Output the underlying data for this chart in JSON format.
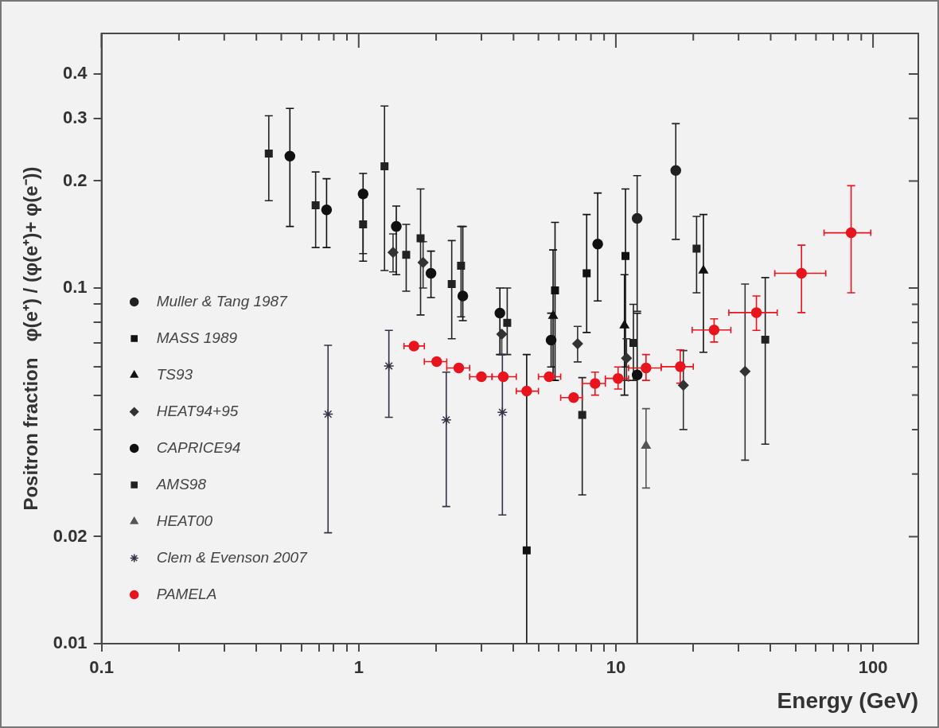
{
  "chart_data": {
    "type": "scatter",
    "xlabel": "Energy (GeV)",
    "ylabel": "Positron fraction   φ(e⁺) / (φ(e⁺)+ φ(e⁻))",
    "log": "xy",
    "legend": "left",
    "xlim": [
      0.1,
      150
    ],
    "ylim": [
      0.01,
      0.52
    ],
    "xticks": [
      0.1,
      {
        "value": 0.2,
        "label": null
      },
      {
        "value": 0.3,
        "label": null
      },
      {
        "value": 0.4,
        "label": null
      },
      {
        "value": 0.5,
        "label": null
      },
      {
        "value": 0.6,
        "label": null
      },
      {
        "value": 0.7,
        "label": null
      },
      {
        "value": 0.8,
        "label": null
      },
      {
        "value": 0.9,
        "label": null
      },
      1,
      {
        "value": 2,
        "label": null
      },
      {
        "value": 3,
        "label": null
      },
      {
        "value": 4,
        "label": null
      },
      {
        "value": 5,
        "label": null
      },
      {
        "value": 6,
        "label": null
      },
      {
        "value": 7,
        "label": null
      },
      {
        "value": 8,
        "label": null
      },
      {
        "value": 9,
        "label": null
      },
      10,
      {
        "value": 20,
        "label": null
      },
      {
        "value": 30,
        "label": null
      },
      {
        "value": 40,
        "label": null
      },
      {
        "value": 50,
        "label": null
      },
      {
        "value": 60,
        "label": null
      },
      {
        "value": 70,
        "label": null
      },
      {
        "value": 80,
        "label": null
      },
      {
        "value": 90,
        "label": null
      },
      100
    ],
    "yticks": [
      0.01,
      0.02,
      {
        "value": 0.03,
        "label": null
      },
      {
        "value": 0.04,
        "label": null
      },
      {
        "value": 0.05,
        "label": null
      },
      {
        "value": 0.06,
        "label": null
      },
      {
        "value": 0.07,
        "label": null
      },
      {
        "value": 0.08,
        "label": null
      },
      {
        "value": 0.09,
        "label": null
      },
      0.1,
      0.2,
      0.3,
      0.4
    ],
    "series": [
      {
        "name": "Muller & Tang 1987",
        "color": "#222222",
        "marker": "circle",
        "x": [
          12.1,
          17.1
        ],
        "values": [
          0.157,
          0.214
        ],
        "errors": [
          [
            0.086,
            0.207
          ],
          [
            0.137,
            0.29
          ]
        ]
      },
      {
        "name": "MASS 1989",
        "color": "#111111",
        "marker": "square",
        "x": [
          4.5,
          5.8,
          7.7,
          10.9
        ],
        "values": [
          0.0183,
          0.0985,
          0.11,
          0.123
        ],
        "errors": [
          [
            0.01,
            0.065
          ],
          [
            0.055,
            0.153
          ],
          [
            0.075,
            0.161
          ],
          [
            0.06,
            0.19
          ]
        ]
      },
      {
        "name": "TS93",
        "color": "#111111",
        "marker": "triangle",
        "x": [
          5.7,
          10.8,
          21.9
        ],
        "values": [
          0.0835,
          0.0785,
          0.112
        ],
        "errors": [
          [
            0.055,
            0.128
          ],
          [
            0.05,
            0.109
          ],
          [
            0.066,
            0.161
          ]
        ]
      },
      {
        "name": "HEAT94+95",
        "color": "#333333",
        "marker": "diamond",
        "x": [
          1.36,
          1.78,
          3.6,
          7.1,
          11,
          18.3,
          31.8
        ],
        "values": [
          0.126,
          0.118,
          0.0742,
          0.0697,
          0.0635,
          0.0533,
          0.0583
        ],
        "errors": [
          [
            0.111,
            0.142
          ],
          [
            0.1,
            0.135
          ],
          [
            0.065,
            0.0742
          ],
          [
            0.062,
            0.078
          ],
          [
            0.055,
            0.072
          ],
          [
            0.04,
            0.0667
          ],
          [
            0.0328,
            0.1026
          ]
        ]
      },
      {
        "name": "CAPRICE94",
        "color": "#111111",
        "marker": "circle",
        "x": [
          0.54,
          0.75,
          1.04,
          1.4,
          1.91,
          2.54,
          3.54,
          5.6,
          8.5,
          12.1
        ],
        "values": [
          0.235,
          0.166,
          0.184,
          0.149,
          0.11,
          0.095,
          0.085,
          0.0714,
          0.133,
          0.057
        ],
        "errors": [
          [
            0.149,
            0.32
          ],
          [
            0.13,
            0.203
          ],
          [
            0.119,
            0.21
          ],
          [
            0.109,
            0.17
          ],
          [
            0.094,
            0.127
          ],
          [
            0.081,
            0.149
          ],
          [
            0.065,
            0.1
          ],
          [
            0.06,
            0.085
          ],
          [
            0.092,
            0.185
          ],
          [
            0.01,
            0.085
          ]
        ]
      },
      {
        "name": "AMS98",
        "color": "#222222",
        "marker": "square",
        "x": [
          0.447,
          0.68,
          1.04,
          1.26,
          1.53,
          1.74,
          2.3,
          2.5,
          3.78,
          7.4,
          11.7,
          20.6,
          38.1
        ],
        "values": [
          0.239,
          0.171,
          0.151,
          0.22,
          0.124,
          0.138,
          0.1026,
          0.1155,
          0.0798,
          0.044,
          0.0701,
          0.129,
          0.0716
        ],
        "errors": [
          [
            0.176,
            0.305
          ],
          [
            0.13,
            0.212
          ],
          [
            0.125,
            0.18
          ],
          [
            0.112,
            0.325
          ],
          [
            0.098,
            0.151
          ],
          [
            0.084,
            0.19
          ],
          [
            0.072,
            0.136
          ],
          [
            0.083,
            0.149
          ],
          [
            0.065,
            0.1
          ],
          [
            0.0262,
            0.056
          ],
          [
            0.055,
            0.09
          ],
          [
            0.097,
            0.159
          ],
          [
            0.0364,
            0.107
          ]
        ]
      },
      {
        "name": "HEAT00",
        "color": "#555555",
        "marker": "triangle",
        "x": [
          13.1
        ],
        "values": [
          0.036
        ],
        "errors": [
          [
            0.0274,
            0.0458
          ]
        ]
      },
      {
        "name": "Clem & Evenson 2007",
        "color": "#333344",
        "marker": "cross",
        "x": [
          0.76,
          1.31,
          2.19,
          3.62
        ],
        "values": [
          0.0442,
          0.0604,
          0.0426,
          0.0447
        ],
        "errors": [
          [
            0.0205,
            0.069
          ],
          [
            0.0433,
            0.076
          ],
          [
            0.0243,
            0.058
          ],
          [
            0.023,
            0.065
          ]
        ]
      },
      {
        "name": "PAMELA",
        "color": "#e8141e",
        "marker": "circle",
        "x": [
          1.64,
          2.01,
          2.45,
          3.0,
          3.65,
          4.5,
          5.5,
          6.85,
          8.3,
          10.2,
          13.1,
          17.8,
          24.1,
          35.2,
          52.7,
          82.2
        ],
        "values": [
          0.0687,
          0.0621,
          0.0596,
          0.0563,
          0.0563,
          0.0513,
          0.0563,
          0.0492,
          0.0539,
          0.0557,
          0.0596,
          0.0601,
          0.0762,
          0.0853,
          0.11,
          0.143
        ],
        "errors": [
          null,
          null,
          null,
          null,
          null,
          null,
          null,
          null,
          [
            0.05,
            0.058
          ],
          [
            0.052,
            0.06
          ],
          [
            0.055,
            0.065
          ],
          [
            0.054,
            0.067
          ],
          [
            0.0705,
            0.0819
          ],
          [
            0.076,
            0.095
          ],
          [
            0.0853,
            0.132
          ],
          [
            0.097,
            0.194
          ]
        ],
        "xerrors": [
          [
            1.5,
            1.8
          ],
          [
            1.8,
            2.2
          ],
          [
            2.2,
            2.7
          ],
          [
            2.7,
            3.3
          ],
          [
            3.3,
            4.1
          ],
          [
            4.1,
            5.0
          ],
          [
            5.0,
            6.1
          ],
          [
            6.1,
            7.4
          ],
          [
            7.4,
            9.1
          ],
          [
            9.1,
            11.2
          ],
          [
            11.2,
            15
          ],
          [
            15,
            20
          ],
          [
            19.8,
            28
          ],
          [
            27.5,
            42.4
          ],
          [
            41.5,
            65.5
          ],
          [
            64.5,
            98
          ]
        ]
      }
    ]
  }
}
